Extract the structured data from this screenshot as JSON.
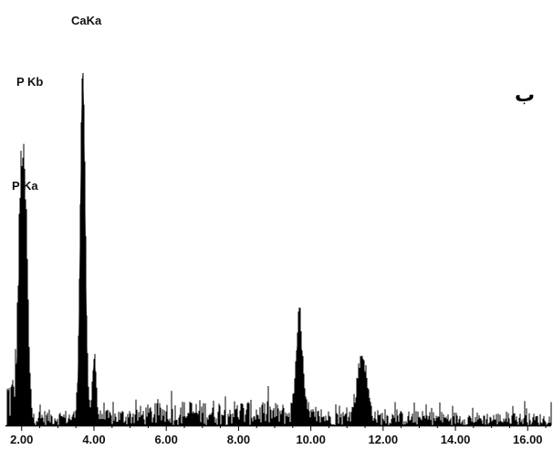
{
  "panel_letter": "ب",
  "chart_data": {
    "type": "line",
    "title": "",
    "xlabel": "",
    "ylabel": "",
    "xlim": [
      1.4,
      16.7
    ],
    "ylim": [
      0,
      100
    ],
    "x_ticks": [
      "2.00",
      "4.00",
      "6.00",
      "8.00",
      "10.00",
      "12.00",
      "14.00",
      "16.00"
    ],
    "x_tick_values": [
      2,
      4,
      6,
      8,
      10,
      12,
      14,
      16
    ],
    "color": "#000000",
    "peaks": [
      {
        "label": "P Ka",
        "x": 2.01,
        "y": 71,
        "width": 0.09
      },
      {
        "label": "P Kb",
        "x": 2.14,
        "y": 24,
        "width": 0.05
      },
      {
        "label": "CaKa",
        "x": 3.69,
        "y": 100,
        "width": 0.07
      },
      {
        "label": "",
        "x": 4.01,
        "y": 19,
        "width": 0.05
      },
      {
        "label": "",
        "x": 9.68,
        "y": 29,
        "width": 0.09
      },
      {
        "label": "",
        "x": 11.42,
        "y": 18,
        "width": 0.13
      }
    ],
    "annotations": [
      {
        "text": "CaKa",
        "x": 3.69
      },
      {
        "text": "P Kb",
        "x": 2.08
      },
      {
        "text": "P Ka",
        "x": 2.04
      }
    ]
  }
}
